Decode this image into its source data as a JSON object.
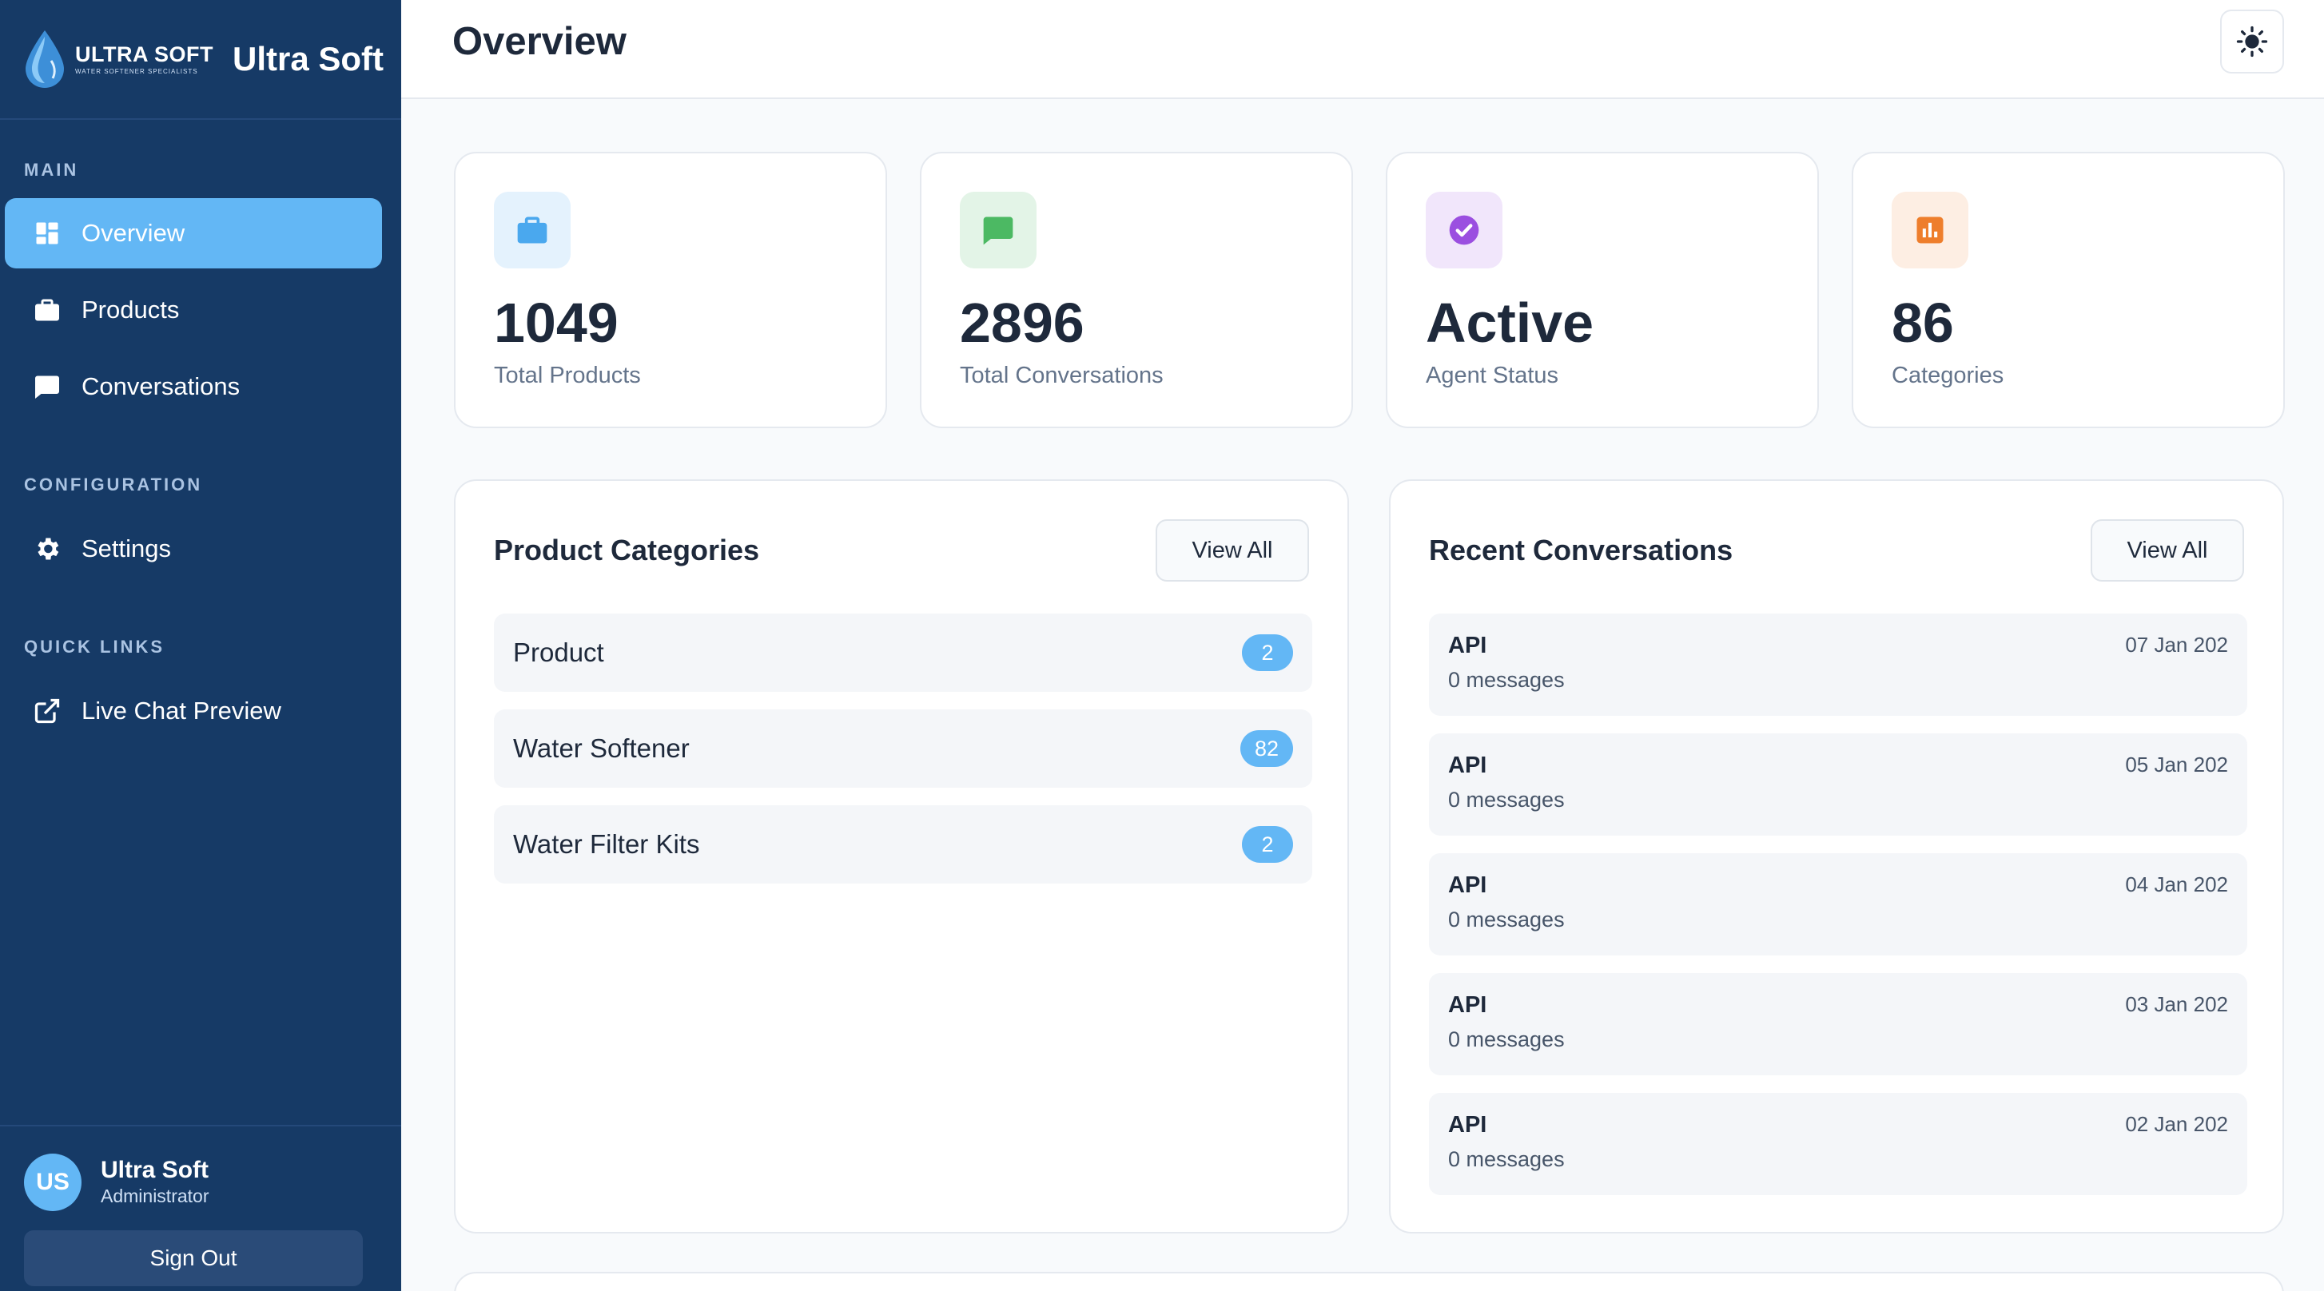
{
  "brand": {
    "logo_main": "ULTRA SOFT",
    "logo_tagline": "WATER SOFTENER SPECIALISTS",
    "name": "Ultra Soft"
  },
  "sidebar": {
    "sections": {
      "main": "MAIN",
      "configuration": "CONFIGURATION",
      "quick_links": "QUICK LINKS"
    },
    "items": [
      {
        "label": "Overview",
        "icon": "dashboard-icon",
        "active": true
      },
      {
        "label": "Products",
        "icon": "briefcase-icon",
        "active": false
      },
      {
        "label": "Conversations",
        "icon": "chat-icon",
        "active": false
      },
      {
        "label": "Settings",
        "icon": "gear-icon",
        "active": false
      },
      {
        "label": "Live Chat Preview",
        "icon": "external-link-icon",
        "active": false
      }
    ],
    "user": {
      "initials": "US",
      "name": "Ultra Soft",
      "role": "Administrator"
    },
    "sign_out": "Sign Out"
  },
  "header": {
    "title": "Overview",
    "theme_icon": "sun-icon"
  },
  "stats": [
    {
      "value": "1049",
      "label": "Total Products",
      "icon": "briefcase-icon",
      "color": "#4aa8ee",
      "bg": "#e4f2fd"
    },
    {
      "value": "2896",
      "label": "Total Conversations",
      "icon": "chat-icon",
      "color": "#4cb963",
      "bg": "#e3f4e7"
    },
    {
      "value": "Active",
      "label": "Agent Status",
      "icon": "check-circle-icon",
      "color": "#9b4fe0",
      "bg": "#f1e6fb"
    },
    {
      "value": "86",
      "label": "Categories",
      "icon": "bar-chart-icon",
      "color": "#ee7e2c",
      "bg": "#fdeee3"
    }
  ],
  "categories_panel": {
    "title": "Product Categories",
    "view_all": "View All",
    "rows": [
      {
        "name": "Product",
        "count": "2"
      },
      {
        "name": "Water Softener",
        "count": "82"
      },
      {
        "name": "Water Filter Kits",
        "count": "2"
      }
    ]
  },
  "conversations_panel": {
    "title": "Recent Conversations",
    "view_all": "View All",
    "rows": [
      {
        "source": "API",
        "messages": "0 messages",
        "date": "07 Jan 202"
      },
      {
        "source": "API",
        "messages": "0 messages",
        "date": "05 Jan 202"
      },
      {
        "source": "API",
        "messages": "0 messages",
        "date": "04 Jan 202"
      },
      {
        "source": "API",
        "messages": "0 messages",
        "date": "03 Jan 202"
      },
      {
        "source": "API",
        "messages": "0 messages",
        "date": "02 Jan 202"
      }
    ]
  }
}
